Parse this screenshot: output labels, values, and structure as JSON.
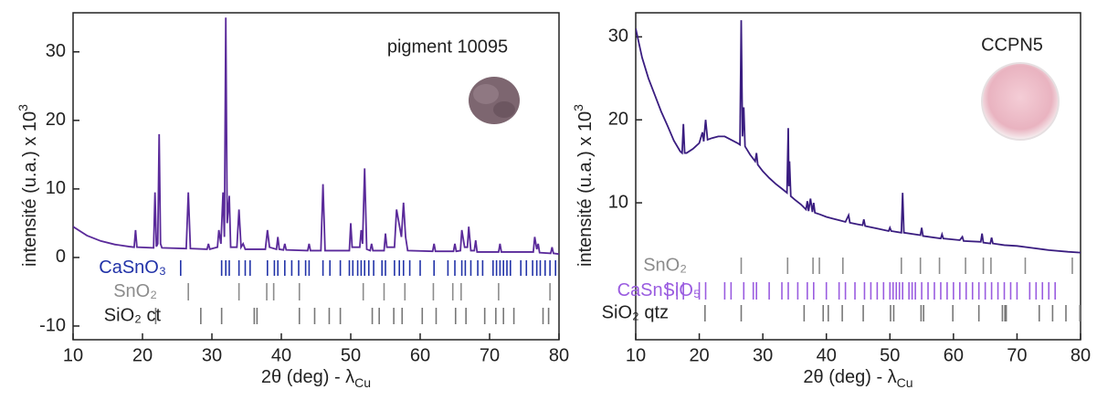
{
  "chart_data": [
    {
      "type": "line",
      "annotation": "pigment 10095",
      "color": "#5a2a9a",
      "xlabel": "2θ (deg) - λ",
      "xlabel_sub": "Cu",
      "ylabel": "intensité  (u.a.) x 10",
      "ylabel_sup": "3",
      "xlim": [
        10,
        80
      ],
      "ylim": [
        -12,
        35.7
      ],
      "xticks": [
        10,
        20,
        30,
        40,
        50,
        60,
        70,
        80
      ],
      "yticks": [
        -10,
        0,
        10,
        20,
        30
      ],
      "x": [
        10,
        12,
        14,
        16,
        18,
        18.8,
        19,
        19.2,
        21.6,
        21.8,
        22,
        22.2,
        22.4,
        22.6,
        22.8,
        26.3,
        26.6,
        26.9,
        29.3,
        29.5,
        29.7,
        30.8,
        31,
        31.3,
        31.6,
        31.8,
        32,
        32.2,
        32.5,
        32.7,
        33.6,
        33.9,
        34.2,
        34.5,
        34.8,
        37.7,
        38,
        38.3,
        39.3,
        39.5,
        39.7,
        40.3,
        40.5,
        40.7,
        43.8,
        44,
        44.2,
        45.7,
        46,
        46.3,
        49.8,
        50,
        50.2,
        51.3,
        51.5,
        51.7,
        52,
        52.3,
        52.8,
        53,
        53.2,
        54.8,
        55,
        55.2,
        56.3,
        56.6,
        57.3,
        57.6,
        57.9,
        58.2,
        61.8,
        62,
        62.2,
        64.8,
        65,
        65.2,
        65.8,
        66,
        66.4,
        66.8,
        67,
        67.3,
        67.8,
        68,
        68.2,
        71.3,
        71.5,
        71.7,
        76.3,
        76.5,
        76.8,
        77,
        77.2,
        78.8,
        79,
        79.2,
        80
      ],
      "values": [
        4.5,
        3.2,
        2.4,
        1.9,
        1.6,
        1.5,
        4,
        1.5,
        1.4,
        9.5,
        1.6,
        2,
        18,
        2,
        1.4,
        1.3,
        9.5,
        1.3,
        1.2,
        2,
        1.2,
        1.5,
        4,
        2,
        9.5,
        3,
        35,
        5,
        9,
        1.5,
        1.5,
        7,
        1.5,
        2,
        1.2,
        1.2,
        4,
        1.5,
        1.2,
        3,
        1.2,
        1.1,
        2,
        1.1,
        1,
        2,
        1,
        1,
        10.7,
        1,
        1,
        5,
        1.5,
        1.5,
        4,
        2,
        13,
        1.2,
        1,
        2,
        1,
        1,
        3.5,
        1.5,
        1.5,
        7,
        3,
        8,
        3,
        1,
        0.9,
        2,
        0.9,
        0.9,
        2,
        0.9,
        1,
        4,
        1.5,
        1.5,
        4.5,
        1,
        1,
        2.5,
        0.8,
        0.8,
        2,
        0.8,
        0.8,
        3,
        1.2,
        2,
        0.7,
        0.6,
        1.5,
        0.6,
        0.5
      ],
      "phases": [
        {
          "name": "CaSnO₃",
          "color": "#2233a8",
          "positions": [
            25.5,
            31.4,
            32.0,
            32.5,
            33.9,
            34.8,
            35.5,
            38,
            39,
            39.5,
            40.5,
            41.5,
            42.5,
            43.5,
            44,
            46,
            47,
            48.5,
            49.8,
            50.3,
            51,
            51.5,
            52,
            52.6,
            53.3,
            54.5,
            55,
            56.3,
            57,
            57.6,
            58.5,
            60,
            62,
            64,
            65,
            66,
            66.5,
            67.3,
            68.3,
            69,
            70.5,
            71,
            71.5,
            72,
            72.5,
            73,
            74.5,
            75.3,
            76.2,
            76.8,
            77.3,
            78,
            78.7,
            79.5
          ]
        },
        {
          "name": "SnO₂",
          "color": "#8c8c8c",
          "positions": [
            26.6,
            33.9,
            37.9,
            38.9,
            42.6,
            51.8,
            54.8,
            57.8,
            61.9,
            64.7,
            65.9,
            71.3,
            78.7
          ]
        },
        {
          "name": "SiO₂ ct",
          "color": "#222222",
          "positions": [
            21.9,
            28.4,
            31.4,
            36.1,
            36.5,
            42.6,
            44.8,
            46.9,
            48.5,
            53.1,
            54.1,
            56.2,
            57.4,
            60.3,
            62.3,
            65.1,
            66.6,
            69.3,
            70.9,
            72.0,
            73.5,
            77.7,
            78.5
          ]
        }
      ]
    },
    {
      "type": "line",
      "annotation": "CCPN5",
      "color": "#3a1d80",
      "xlabel": "2θ (deg) - λ",
      "xlabel_sub": "Cu",
      "ylabel": "intensité  (u.a.) x 10",
      "ylabel_sup": "3",
      "xlim": [
        10,
        80
      ],
      "ylim": [
        -6.5,
        32.9
      ],
      "xticks": [
        10,
        20,
        30,
        40,
        50,
        60,
        70,
        80
      ],
      "yticks": [
        10,
        20,
        30
      ],
      "x": [
        10,
        11,
        12,
        13,
        14,
        15,
        16,
        17,
        17.3,
        17.5,
        17.7,
        18,
        19,
        20,
        20.5,
        20.7,
        21,
        21.3,
        22,
        23,
        24,
        25,
        26,
        26.4,
        26.6,
        26.8,
        27,
        27.2,
        28,
        28.8,
        29,
        29.2,
        30,
        31,
        32,
        33,
        33.8,
        34,
        34.1,
        34.2,
        34.4,
        35,
        36,
        36.8,
        37,
        37.2,
        37.5,
        37.8,
        38,
        38.2,
        39,
        40,
        41,
        42,
        43,
        43.5,
        43.7,
        45,
        45.7,
        45.9,
        46.1,
        48,
        49.8,
        50,
        50.2,
        51.8,
        52,
        52.2,
        54.8,
        55,
        55.2,
        58,
        58.2,
        58.4,
        61,
        61.4,
        61.6,
        64.3,
        64.5,
        64.7,
        65.8,
        66,
        66.2,
        68,
        70,
        72,
        75,
        78,
        80
      ],
      "values": [
        31,
        27.5,
        25,
        23,
        21,
        19.3,
        17.5,
        16.2,
        16,
        19.5,
        16,
        16,
        16.5,
        17.2,
        18.5,
        17.4,
        20,
        17.6,
        17.8,
        18,
        18,
        17.6,
        17.2,
        17,
        32,
        18,
        21.5,
        16.8,
        15.8,
        15,
        16,
        14.6,
        13.8,
        13,
        12.3,
        11.7,
        11.2,
        19,
        12,
        15,
        10.8,
        10.4,
        9.8,
        9.2,
        10.2,
        9,
        10.5,
        8.9,
        10,
        8.8,
        8.6,
        8.3,
        8.1,
        7.9,
        7.7,
        8.5,
        7.6,
        7.4,
        7.3,
        8,
        7.2,
        6.9,
        6.6,
        7,
        6.6,
        6.4,
        11.2,
        6.4,
        6.1,
        7,
        6,
        5.7,
        6.2,
        5.7,
        5.5,
        5.9,
        5.4,
        5.3,
        6.3,
        5.2,
        5.1,
        5.8,
        5.1,
        4.9,
        4.8,
        4.6,
        4.3,
        4.1,
        4
      ],
      "phases": [
        {
          "name": "SnO₂",
          "color": "#8c8c8c",
          "positions": [
            26.6,
            33.9,
            37.9,
            38.9,
            42.6,
            51.8,
            54.8,
            57.8,
            61.9,
            64.7,
            65.9,
            71.3,
            78.7
          ]
        },
        {
          "name": "CaSnSiO₅",
          "color": "#9a5ce0",
          "positions": [
            15,
            16.5,
            17.5,
            20,
            21,
            24,
            25,
            27,
            28.5,
            29,
            31,
            33,
            34,
            35.5,
            37,
            38,
            40,
            42,
            43,
            44.5,
            46,
            47,
            48,
            49,
            50,
            50.5,
            51,
            51.5,
            52,
            53,
            53.5,
            54,
            55,
            56,
            57,
            58,
            59,
            60,
            61,
            62,
            63,
            64,
            65,
            66,
            67,
            68,
            69,
            70,
            72,
            73,
            74,
            75,
            76
          ]
        },
        {
          "name": "SiO₂ qtz",
          "color": "#222222",
          "positions": [
            20.9,
            26.6,
            36.5,
            39.5,
            40.3,
            42.5,
            45.8,
            50.1,
            50.6,
            54.9,
            55.3,
            59.9,
            64.0,
            67.7,
            68.1,
            68.3,
            73.5,
            75.6,
            77.7,
            79.9
          ]
        }
      ]
    }
  ]
}
